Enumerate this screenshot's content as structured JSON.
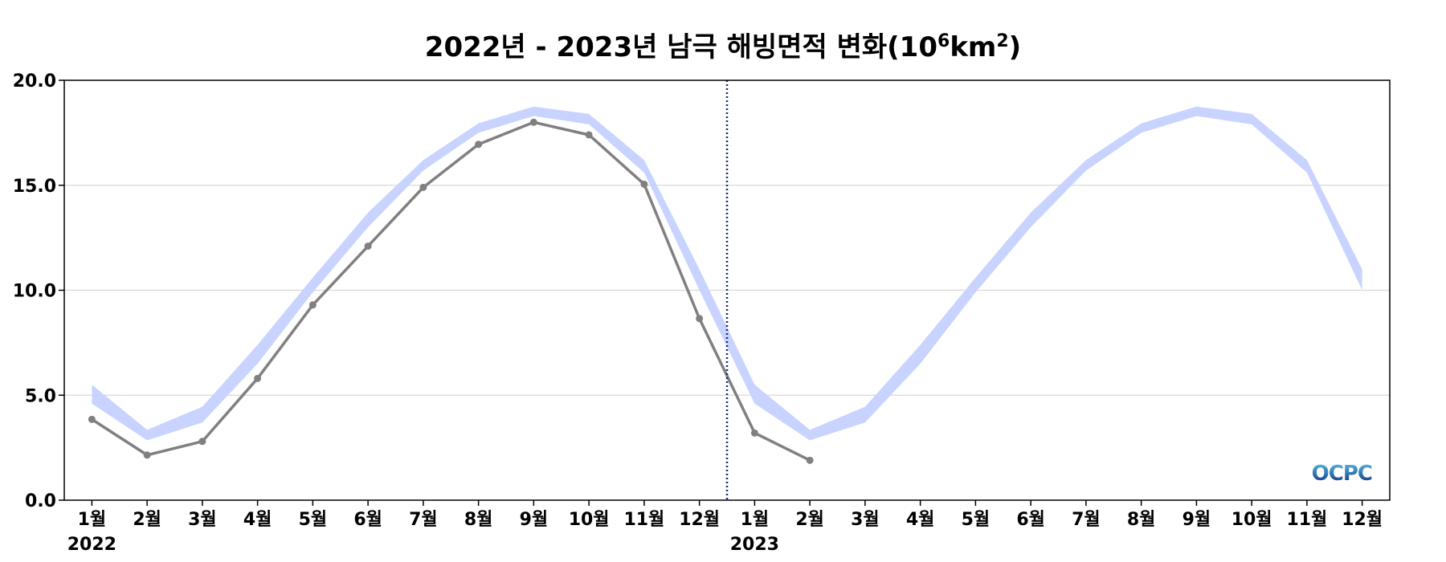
{
  "chart_data": {
    "type": "line",
    "title": "2022년 - 2023년 남극 해빙면적 변화(10",
    "title_sup": "6",
    "title_unit": "km",
    "title_unit_sup": "2",
    "title_end": ")",
    "ylim": [
      0,
      20
    ],
    "yticks": [
      "0.0",
      "5.0",
      "10.0",
      "15.0",
      "20.0"
    ],
    "ytick_values": [
      0,
      5,
      10,
      15,
      20
    ],
    "grid": "horizontal",
    "x_categories": [
      "1월",
      "2월",
      "3월",
      "4월",
      "5월",
      "6월",
      "7월",
      "8월",
      "9월",
      "10월",
      "11월",
      "12월",
      "1월",
      "2월",
      "3월",
      "4월",
      "5월",
      "6월",
      "7월",
      "8월",
      "9월",
      "10월",
      "11월",
      "12월"
    ],
    "year_labels": [
      "2022",
      "2023"
    ],
    "year_divider_after_index": 11.5,
    "series": [
      {
        "values": [
          3.85,
          2.15,
          2.8,
          5.8,
          9.3,
          12.1,
          14.9,
          16.95,
          18.0,
          17.4,
          15.05,
          8.65,
          3.2,
          1.9
        ],
        "color": "#808080"
      }
    ],
    "band": {
      "color": "#c8d4ff",
      "lower": [
        4.6,
        2.85,
        3.7,
        6.5,
        9.9,
        13.0,
        15.7,
        17.5,
        18.3,
        17.9,
        15.6,
        10.0,
        4.6,
        2.85,
        3.7,
        6.5,
        9.9,
        13.0,
        15.7,
        17.5,
        18.3,
        17.9,
        15.6,
        10.0
      ],
      "upper": [
        5.5,
        3.35,
        4.45,
        7.4,
        10.6,
        13.7,
        16.2,
        17.95,
        18.75,
        18.4,
        16.2,
        11.0,
        5.5,
        3.35,
        4.45,
        7.4,
        10.6,
        13.7,
        16.2,
        17.95,
        18.75,
        18.4,
        16.2,
        11.0
      ]
    }
  },
  "logo": {
    "text": "OCPC",
    "color_top": "#5bc0e8",
    "color_bottom": "#0a2d7a"
  }
}
